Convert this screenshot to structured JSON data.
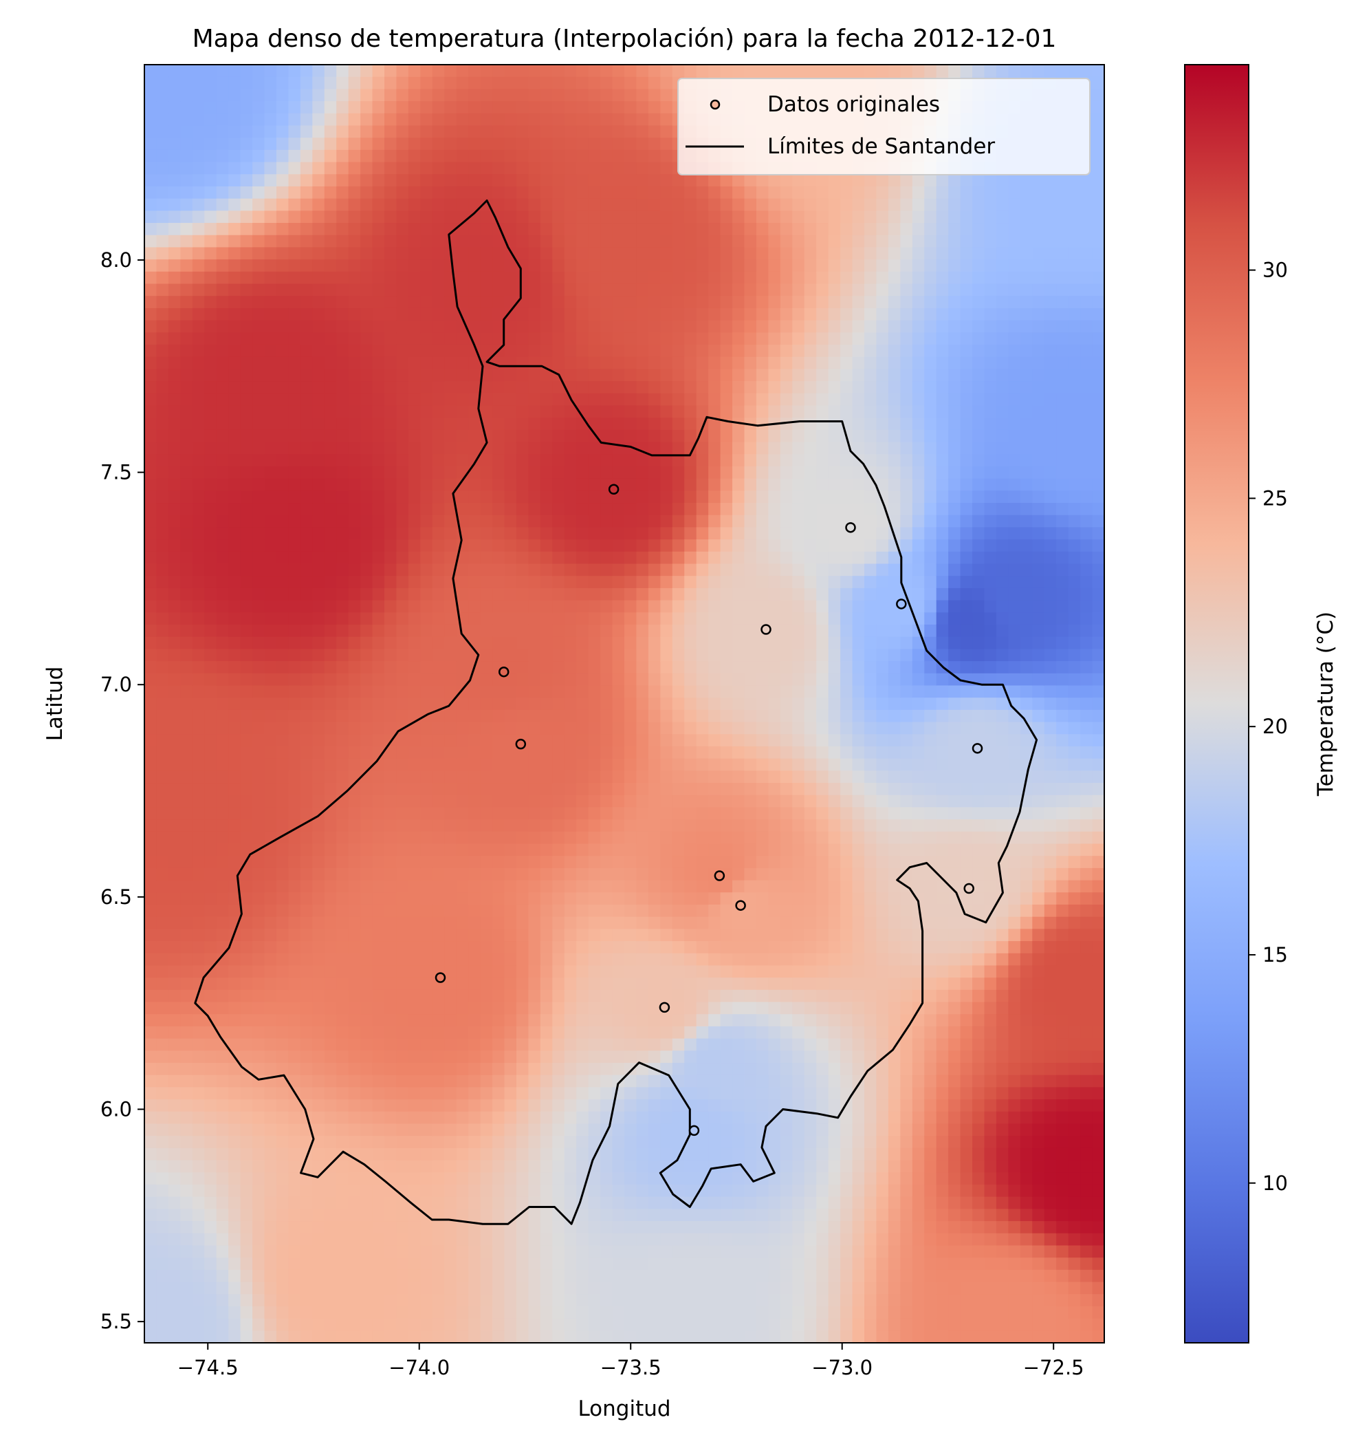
{
  "chart_data": {
    "type": "heatmap",
    "title": "Mapa denso de temperatura (Interpolación) para la fecha 2012-12-01",
    "xlabel": "Longitud",
    "ylabel": "Latitud",
    "xlim": [
      -74.65,
      -72.38
    ],
    "ylim": [
      5.45,
      8.46
    ],
    "x_ticks": [
      -74.5,
      -74.0,
      -73.5,
      -73.0,
      -72.5
    ],
    "x_tick_labels": [
      "−74.5",
      "−74.0",
      "−73.5",
      "−73.0",
      "−72.5"
    ],
    "y_ticks": [
      5.5,
      6.0,
      6.5,
      7.0,
      7.5,
      8.0
    ],
    "y_tick_labels": [
      "5.5",
      "6.0",
      "6.5",
      "7.0",
      "7.5",
      "8.0"
    ],
    "colormap": "coolwarm",
    "colorbar": {
      "label": "Temperatura (°C)",
      "range": [
        6.5,
        34.5
      ],
      "ticks": [
        10,
        15,
        20,
        25,
        30
      ],
      "tick_labels": [
        "10",
        "15",
        "20",
        "25",
        "30"
      ]
    },
    "legend": {
      "placement": "upper-right",
      "entries": [
        "Datos originales",
        "Límites de Santander"
      ]
    },
    "points": [
      {
        "lon": -73.54,
        "lat": 7.46,
        "temp": 32.5
      },
      {
        "lon": -72.98,
        "lat": 7.37,
        "temp": 20.5
      },
      {
        "lon": -72.86,
        "lat": 7.19,
        "temp": 17.0
      },
      {
        "lon": -73.18,
        "lat": 7.13,
        "temp": 22.0
      },
      {
        "lon": -73.8,
        "lat": 7.03,
        "temp": 29.5
      },
      {
        "lon": -73.76,
        "lat": 6.86,
        "temp": 29.0
      },
      {
        "lon": -72.68,
        "lat": 6.85,
        "temp": 19.0
      },
      {
        "lon": -73.29,
        "lat": 6.55,
        "temp": 27.0
      },
      {
        "lon": -73.24,
        "lat": 6.48,
        "temp": 25.0
      },
      {
        "lon": -72.7,
        "lat": 6.52,
        "temp": 22.0
      },
      {
        "lon": -73.95,
        "lat": 6.31,
        "temp": 28.0
      },
      {
        "lon": -73.42,
        "lat": 6.24,
        "temp": 23.0
      },
      {
        "lon": -73.35,
        "lat": 5.95,
        "temp": 18.0
      }
    ],
    "field_anchors": [
      {
        "lon": -74.3,
        "lat": 7.35,
        "temp": 33.0
      },
      {
        "lon": -74.35,
        "lat": 7.7,
        "temp": 32.5
      },
      {
        "lon": -73.85,
        "lat": 7.95,
        "temp": 32.0
      },
      {
        "lon": -73.5,
        "lat": 8.05,
        "temp": 30.5
      },
      {
        "lon": -74.55,
        "lat": 6.7,
        "temp": 30.5
      },
      {
        "lon": -74.6,
        "lat": 8.4,
        "temp": 15.0
      },
      {
        "lon": -73.1,
        "lat": 8.4,
        "temp": 24.0
      },
      {
        "lon": -72.45,
        "lat": 8.2,
        "temp": 17.0
      },
      {
        "lon": -72.7,
        "lat": 7.15,
        "temp": 8.0
      },
      {
        "lon": -72.6,
        "lat": 7.2,
        "temp": 9.0
      },
      {
        "lon": -72.45,
        "lat": 7.6,
        "temp": 14.0
      },
      {
        "lon": -72.42,
        "lat": 5.85,
        "temp": 34.0
      },
      {
        "lon": -72.45,
        "lat": 6.3,
        "temp": 31.0
      },
      {
        "lon": -72.6,
        "lat": 5.5,
        "temp": 27.0
      },
      {
        "lon": -73.35,
        "lat": 5.55,
        "temp": 20.0
      },
      {
        "lon": -74.6,
        "lat": 5.5,
        "temp": 19.0
      },
      {
        "lon": -74.2,
        "lat": 5.6,
        "temp": 24.0
      },
      {
        "lon": -73.3,
        "lat": 6.1,
        "temp": 18.5
      }
    ],
    "boundary": [
      [
        -73.87,
        8.11
      ],
      [
        -73.84,
        8.14
      ],
      [
        -73.82,
        8.1
      ],
      [
        -73.79,
        8.03
      ],
      [
        -73.76,
        7.98
      ],
      [
        -73.76,
        7.91
      ],
      [
        -73.8,
        7.86
      ],
      [
        -73.8,
        7.8
      ],
      [
        -73.84,
        7.76
      ],
      [
        -73.81,
        7.75
      ],
      [
        -73.71,
        7.75
      ],
      [
        -73.67,
        7.73
      ],
      [
        -73.64,
        7.67
      ],
      [
        -73.6,
        7.61
      ],
      [
        -73.57,
        7.57
      ],
      [
        -73.5,
        7.56
      ],
      [
        -73.45,
        7.54
      ],
      [
        -73.36,
        7.54
      ],
      [
        -73.34,
        7.58
      ],
      [
        -73.32,
        7.63
      ],
      [
        -73.27,
        7.62
      ],
      [
        -73.2,
        7.61
      ],
      [
        -73.1,
        7.62
      ],
      [
        -73.0,
        7.62
      ],
      [
        -72.98,
        7.55
      ],
      [
        -72.95,
        7.52
      ],
      [
        -72.92,
        7.47
      ],
      [
        -72.9,
        7.42
      ],
      [
        -72.88,
        7.36
      ],
      [
        -72.86,
        7.3
      ],
      [
        -72.86,
        7.24
      ],
      [
        -72.83,
        7.16
      ],
      [
        -72.8,
        7.08
      ],
      [
        -72.76,
        7.04
      ],
      [
        -72.72,
        7.01
      ],
      [
        -72.67,
        7.0
      ],
      [
        -72.62,
        7.0
      ],
      [
        -72.6,
        6.95
      ],
      [
        -72.57,
        6.92
      ],
      [
        -72.54,
        6.87
      ],
      [
        -72.56,
        6.8
      ],
      [
        -72.58,
        6.7
      ],
      [
        -72.61,
        6.62
      ],
      [
        -72.63,
        6.58
      ],
      [
        -72.62,
        6.51
      ],
      [
        -72.66,
        6.44
      ],
      [
        -72.71,
        6.46
      ],
      [
        -72.73,
        6.51
      ],
      [
        -72.77,
        6.55
      ],
      [
        -72.8,
        6.58
      ],
      [
        -72.84,
        6.57
      ],
      [
        -72.87,
        6.54
      ],
      [
        -72.84,
        6.52
      ],
      [
        -72.82,
        6.49
      ],
      [
        -72.81,
        6.42
      ],
      [
        -72.81,
        6.34
      ],
      [
        -72.81,
        6.25
      ],
      [
        -72.84,
        6.2
      ],
      [
        -72.88,
        6.14
      ],
      [
        -72.94,
        6.09
      ],
      [
        -72.98,
        6.03
      ],
      [
        -73.01,
        5.98
      ],
      [
        -73.06,
        5.99
      ],
      [
        -73.14,
        6.0
      ],
      [
        -73.18,
        5.96
      ],
      [
        -73.19,
        5.91
      ],
      [
        -73.16,
        5.85
      ],
      [
        -73.21,
        5.83
      ],
      [
        -73.24,
        5.87
      ],
      [
        -73.31,
        5.86
      ],
      [
        -73.33,
        5.82
      ],
      [
        -73.36,
        5.77
      ],
      [
        -73.4,
        5.8
      ],
      [
        -73.43,
        5.85
      ],
      [
        -73.39,
        5.88
      ],
      [
        -73.36,
        5.94
      ],
      [
        -73.36,
        6.0
      ],
      [
        -73.41,
        6.08
      ],
      [
        -73.48,
        6.11
      ],
      [
        -73.53,
        6.06
      ],
      [
        -73.55,
        5.96
      ],
      [
        -73.59,
        5.88
      ],
      [
        -73.62,
        5.78
      ],
      [
        -73.64,
        5.73
      ],
      [
        -73.68,
        5.77
      ],
      [
        -73.74,
        5.77
      ],
      [
        -73.79,
        5.73
      ],
      [
        -73.85,
        5.73
      ],
      [
        -73.93,
        5.74
      ],
      [
        -73.97,
        5.74
      ],
      [
        -74.02,
        5.78
      ],
      [
        -74.08,
        5.83
      ],
      [
        -74.13,
        5.87
      ],
      [
        -74.18,
        5.9
      ],
      [
        -74.24,
        5.84
      ],
      [
        -74.28,
        5.85
      ],
      [
        -74.25,
        5.93
      ],
      [
        -74.27,
        6.0
      ],
      [
        -74.32,
        6.08
      ],
      [
        -74.38,
        6.07
      ],
      [
        -74.42,
        6.1
      ],
      [
        -74.47,
        6.17
      ],
      [
        -74.5,
        6.22
      ],
      [
        -74.53,
        6.25
      ],
      [
        -74.51,
        6.31
      ],
      [
        -74.45,
        6.38
      ],
      [
        -74.42,
        6.46
      ],
      [
        -74.43,
        6.55
      ],
      [
        -74.4,
        6.6
      ],
      [
        -74.33,
        6.64
      ],
      [
        -74.24,
        6.69
      ],
      [
        -74.17,
        6.75
      ],
      [
        -74.1,
        6.82
      ],
      [
        -74.05,
        6.89
      ],
      [
        -73.98,
        6.93
      ],
      [
        -73.93,
        6.95
      ],
      [
        -73.88,
        7.01
      ],
      [
        -73.86,
        7.07
      ],
      [
        -73.9,
        7.12
      ],
      [
        -73.92,
        7.25
      ],
      [
        -73.9,
        7.34
      ],
      [
        -73.92,
        7.45
      ],
      [
        -73.87,
        7.52
      ],
      [
        -73.84,
        7.57
      ],
      [
        -73.86,
        7.65
      ],
      [
        -73.85,
        7.75
      ],
      [
        -73.87,
        7.8
      ],
      [
        -73.91,
        7.89
      ],
      [
        -73.92,
        7.97
      ],
      [
        -73.93,
        8.06
      ],
      [
        -73.87,
        8.11
      ]
    ]
  }
}
